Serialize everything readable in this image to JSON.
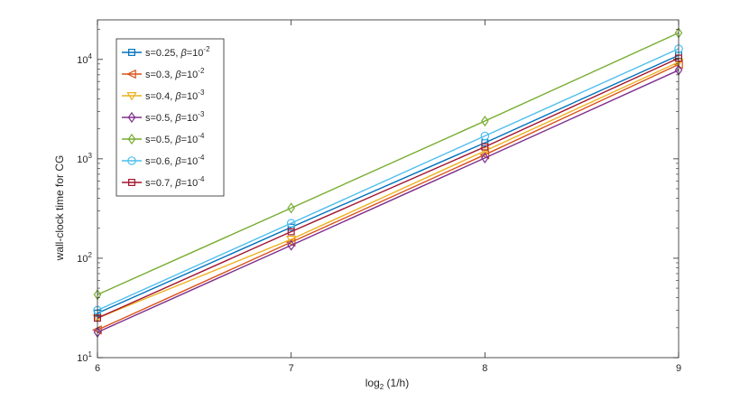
{
  "chart_data": {
    "type": "line",
    "title": "",
    "xlabel": "log",
    "xlabel_sub": "2",
    "xlabel_rest": " (1/h)",
    "ylabel": "wall-clock time for CG",
    "x": [
      6,
      7,
      8,
      9
    ],
    "xlim": [
      6,
      9
    ],
    "xticks": [
      "6",
      "7",
      "8",
      "9"
    ],
    "yscale": "log",
    "ylim": [
      10,
      25000
    ],
    "yticks": [
      {
        "value": 10,
        "base": "10",
        "exp": "1"
      },
      {
        "value": 100,
        "base": "10",
        "exp": "2"
      },
      {
        "value": 1000,
        "base": "10",
        "exp": "3"
      },
      {
        "value": 10000,
        "base": "10",
        "exp": "4"
      }
    ],
    "grid": false,
    "legend_position": "top-left",
    "series": [
      {
        "name_main": "s=0.25, ",
        "name_beta": "β",
        "name_eq": "=10",
        "name_exp": "-2",
        "color": "#0072BD",
        "marker": "square",
        "values": [
          28,
          205,
          1450,
          11000
        ]
      },
      {
        "name_main": "s=0.3, ",
        "name_beta": "β",
        "name_eq": "=10",
        "name_exp": "-2",
        "color": "#D95319",
        "marker": "triangle-left",
        "values": [
          19,
          145,
          1100,
          8900
        ]
      },
      {
        "name_main": "s=0.4, ",
        "name_beta": "β",
        "name_eq": "=10",
        "name_exp": "-3",
        "color": "#EDB120",
        "marker": "triangle-down",
        "values": [
          25,
          155,
          1200,
          9400
        ]
      },
      {
        "name_main": "s=0.5, ",
        "name_beta": "β",
        "name_eq": "=10",
        "name_exp": "-3",
        "color": "#7E2F8E",
        "marker": "diamond",
        "values": [
          18,
          135,
          1020,
          7800
        ]
      },
      {
        "name_main": "s=0.5, ",
        "name_beta": "β",
        "name_eq": "=10",
        "name_exp": "-4",
        "color": "#77AC30",
        "marker": "diamond",
        "values": [
          43,
          320,
          2400,
          18500
        ]
      },
      {
        "name_main": "s=0.6, ",
        "name_beta": "β",
        "name_eq": "=10",
        "name_exp": "-4",
        "color": "#4DBEEE",
        "marker": "circle",
        "values": [
          30,
          225,
          1700,
          12800
        ]
      },
      {
        "name_main": "s=0.7, ",
        "name_beta": "β",
        "name_eq": "=10",
        "name_exp": "-4",
        "color": "#A2142F",
        "marker": "square",
        "values": [
          25,
          185,
          1320,
          10300
        ]
      }
    ]
  }
}
